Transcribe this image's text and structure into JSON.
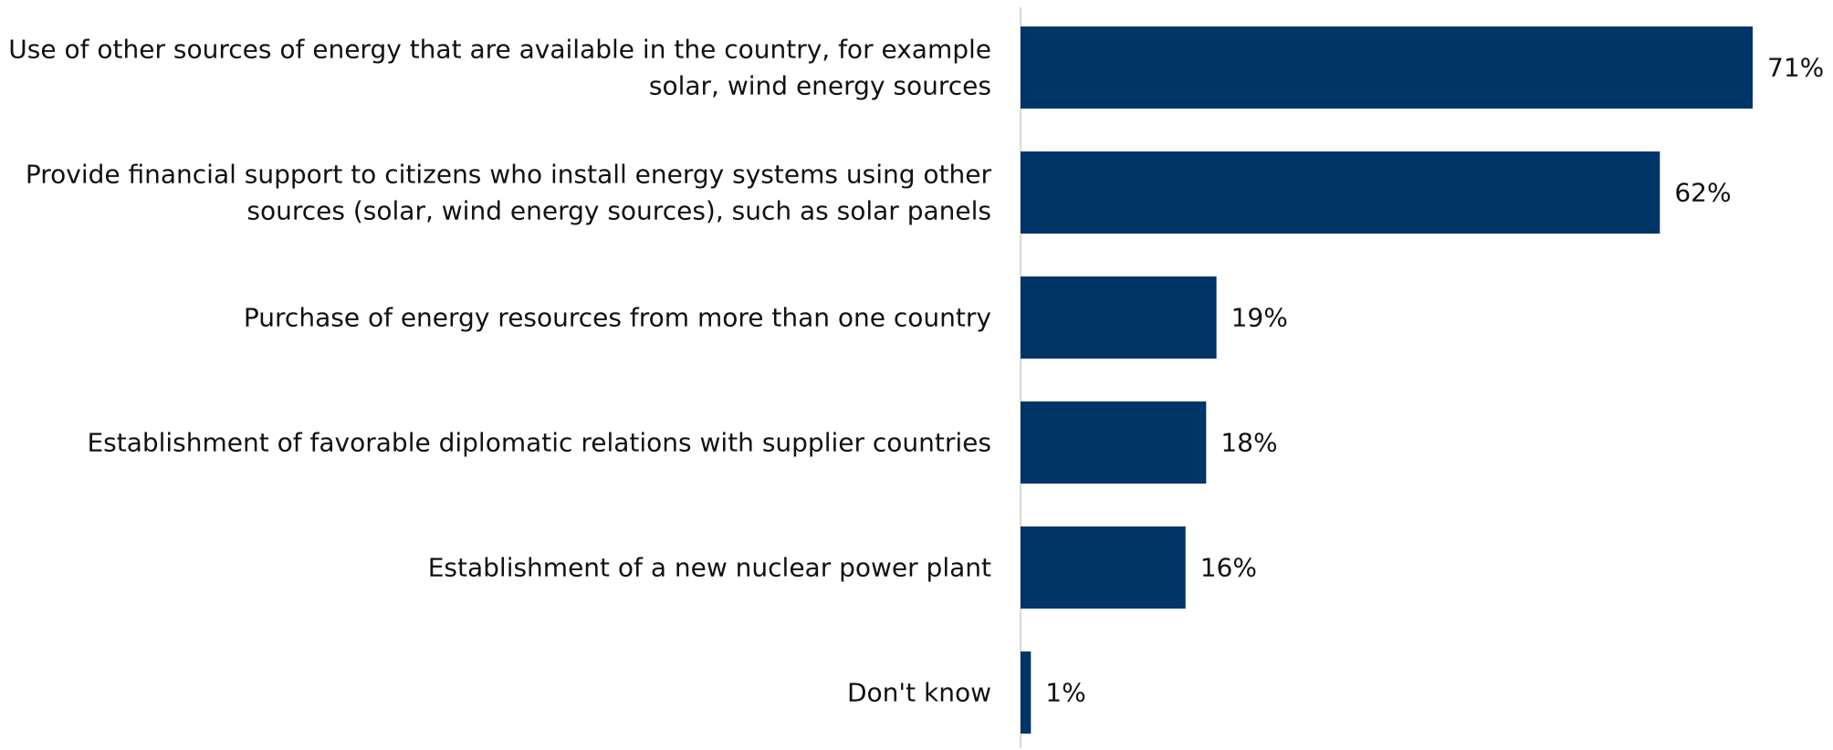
{
  "chart_data": {
    "type": "bar",
    "orientation": "horizontal",
    "categories": [
      [
        "Use of other sources of energy that are available in the country, for example",
        "solar, wind energy sources"
      ],
      [
        "Provide financial support to citizens who install energy systems using other",
        "sources (solar, wind energy sources), such as solar panels"
      ],
      [
        "Purchase of energy resources from more than one country"
      ],
      [
        "Establishment of favorable diplomatic relations with supplier countries"
      ],
      [
        "Establishment of a new nuclear power plant"
      ],
      [
        "Don't know"
      ]
    ],
    "values": [
      71,
      62,
      19,
      18,
      16,
      1
    ],
    "data_labels": [
      "71%",
      "62%",
      "19%",
      "18%",
      "16%",
      "1%"
    ],
    "title": "",
    "xlabel": "",
    "ylabel": "",
    "xlim": [
      0,
      71
    ],
    "grid": false,
    "legend": "none",
    "bar_color": "#003567",
    "axis_color": "#d9d9d9"
  }
}
